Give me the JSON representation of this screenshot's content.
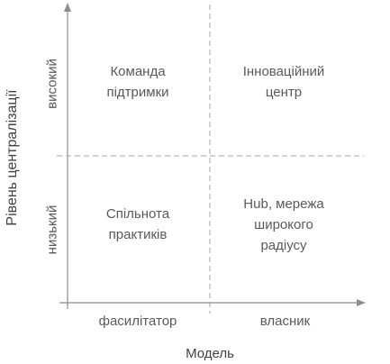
{
  "colors": {
    "axis": "#8c8c8c",
    "divider": "#a6a6a6",
    "text": "#595959",
    "title": "#404040"
  },
  "axes": {
    "y_title": "Рівень централізації",
    "y_ticks": {
      "high": "високий",
      "low": "низький"
    },
    "x_title": "Модель",
    "x_ticks": {
      "left": "фасилітатор",
      "right": "власник"
    }
  },
  "quadrants": {
    "top_left": [
      "Команда",
      "підтримки"
    ],
    "top_right": [
      "Інноваційний",
      "центр"
    ],
    "bottom_left": [
      "Спільнота",
      "практиків"
    ],
    "bottom_right": [
      "Hub, мережа",
      "широкого",
      "радіусу"
    ]
  }
}
